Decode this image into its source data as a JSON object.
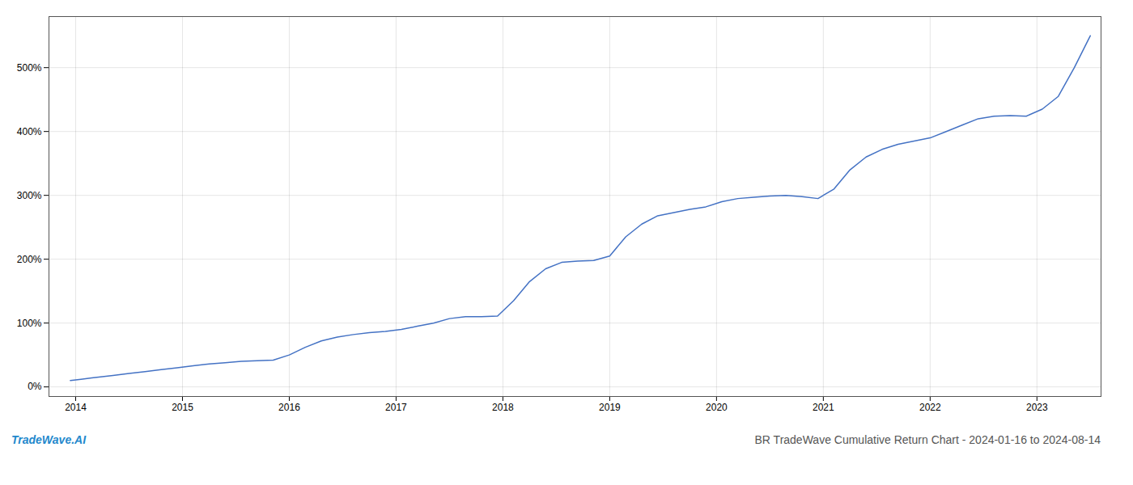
{
  "chart_data": {
    "type": "line",
    "title": "BR TradeWave Cumulative Return Chart - 2024-01-16 to 2024-08-14",
    "annotations": [
      "TradeWave.AI"
    ],
    "color": "#4472c4",
    "grid": true,
    "x": [
      2013.95,
      2014.05,
      2014.15,
      2014.25,
      2014.35,
      2014.5,
      2014.65,
      2014.8,
      2014.95,
      2015.1,
      2015.25,
      2015.4,
      2015.55,
      2015.7,
      2015.85,
      2016.0,
      2016.15,
      2016.3,
      2016.45,
      2016.6,
      2016.75,
      2016.9,
      2017.05,
      2017.2,
      2017.35,
      2017.5,
      2017.65,
      2017.8,
      2017.95,
      2018.1,
      2018.25,
      2018.4,
      2018.55,
      2018.7,
      2018.85,
      2019.0,
      2019.15,
      2019.3,
      2019.45,
      2019.6,
      2019.75,
      2019.9,
      2020.05,
      2020.2,
      2020.35,
      2020.5,
      2020.65,
      2020.8,
      2020.95,
      2021.1,
      2021.25,
      2021.4,
      2021.55,
      2021.7,
      2021.85,
      2022.0,
      2022.15,
      2022.3,
      2022.45,
      2022.6,
      2022.75,
      2022.9,
      2023.05,
      2023.2,
      2023.35,
      2023.5
    ],
    "values": [
      10,
      12,
      14,
      16,
      18,
      21,
      24,
      27,
      30,
      33,
      36,
      38,
      40,
      41,
      42,
      50,
      62,
      72,
      78,
      82,
      85,
      87,
      90,
      95,
      100,
      107,
      110,
      110,
      111,
      135,
      165,
      185,
      195,
      197,
      198,
      205,
      235,
      255,
      268,
      273,
      278,
      282,
      290,
      295,
      297,
      299,
      300,
      298,
      295,
      310,
      340,
      360,
      372,
      380,
      385,
      390,
      400,
      410,
      420,
      424,
      425,
      424,
      435,
      455,
      500,
      550
    ],
    "xlim": [
      2013.75,
      2023.6
    ],
    "xticks": [
      2014,
      2015,
      2016,
      2017,
      2018,
      2019,
      2020,
      2021,
      2022,
      2023
    ],
    "ylim": [
      -15,
      580
    ],
    "yticks": [
      {
        "value": 0,
        "label": "0%"
      },
      {
        "value": 100,
        "label": "100%"
      },
      {
        "value": 200,
        "label": "200%"
      },
      {
        "value": 300,
        "label": "300%"
      },
      {
        "value": 400,
        "label": "400%"
      },
      {
        "value": 500,
        "label": "500%"
      }
    ]
  }
}
